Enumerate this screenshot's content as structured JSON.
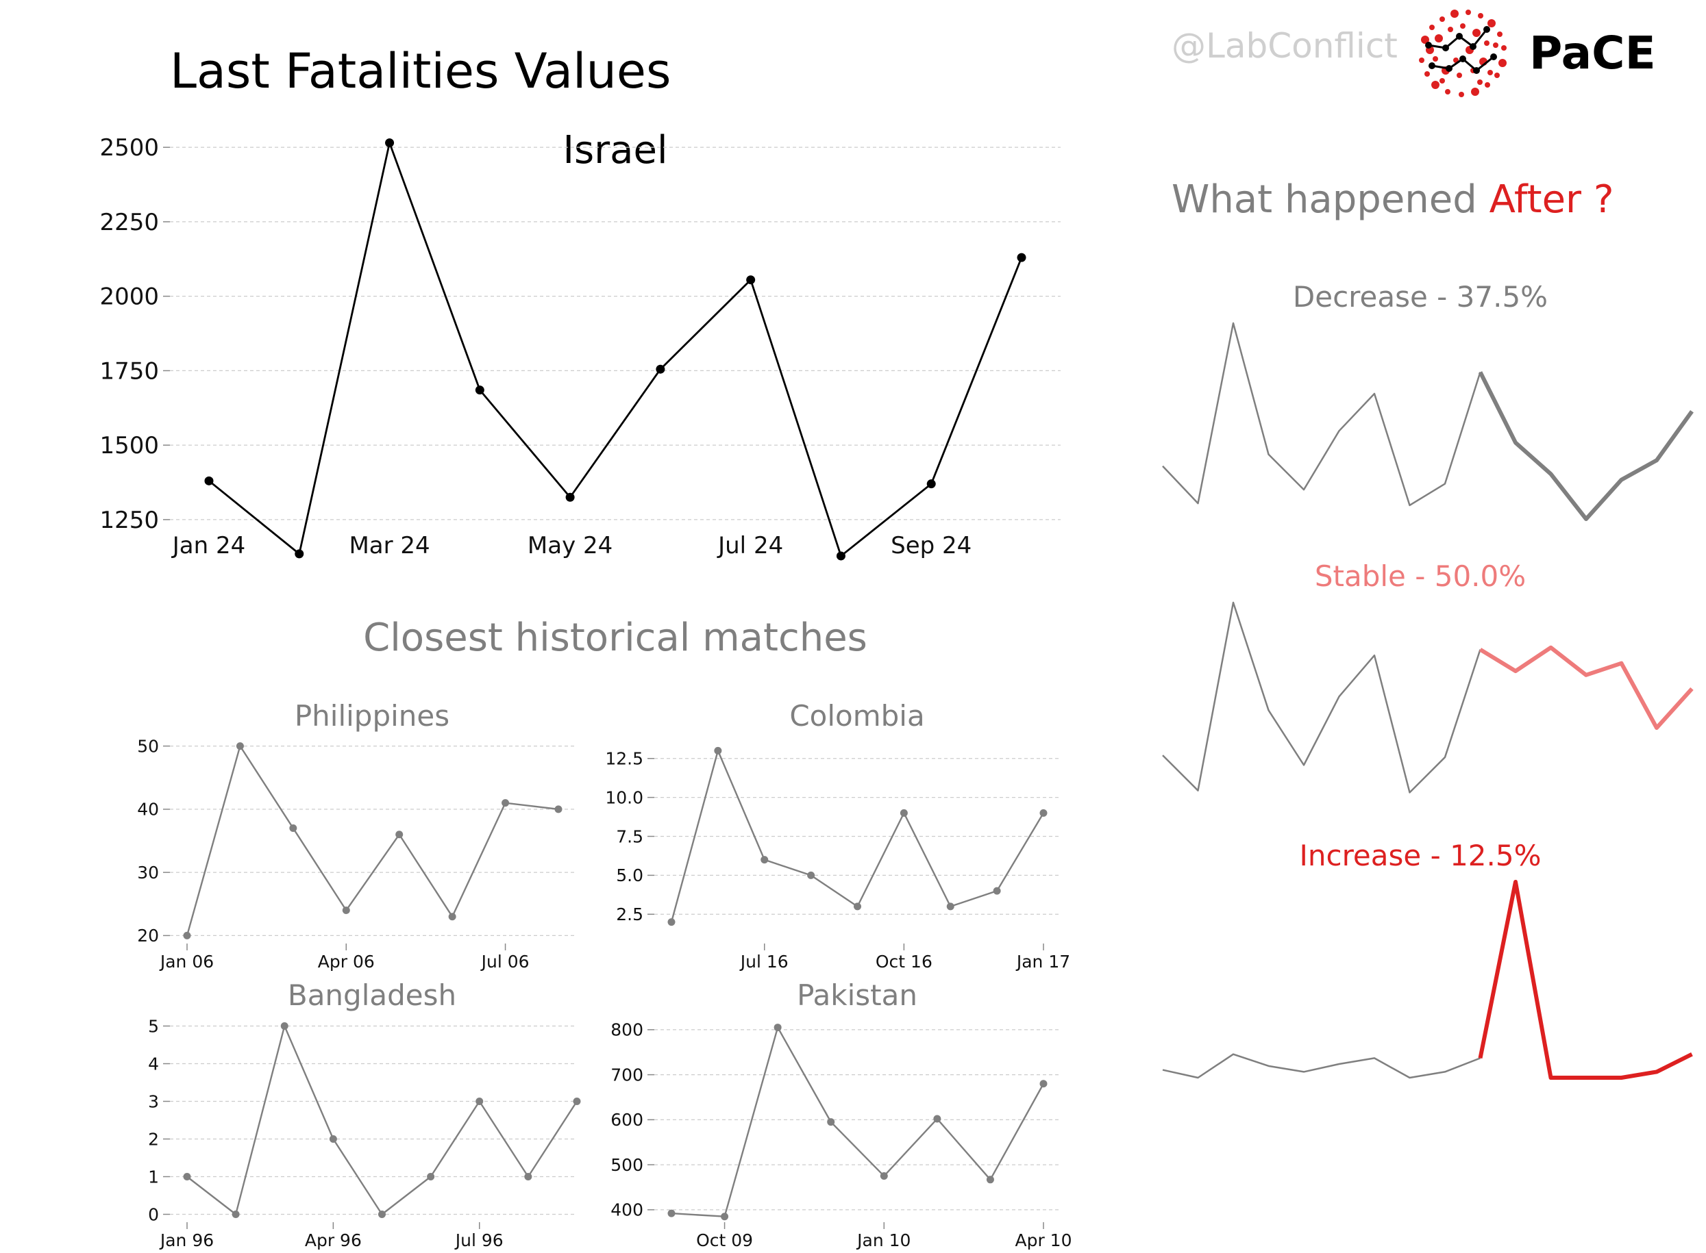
{
  "page_title": "Last Fatalities Values",
  "handle": "@LabConflict",
  "logo_text": "PaCE",
  "colors": {
    "main": "#000000",
    "grey": "#7f7f7f",
    "light_red": "#ee7b7b",
    "red": "#dd2020",
    "grid": "#cccccc"
  },
  "main_chart": {
    "title": "Israel",
    "type": "line",
    "x": [
      "2024-01",
      "2024-02",
      "2024-03",
      "2024-04",
      "2024-05",
      "2024-06",
      "2024-07",
      "2024-08",
      "2024-09",
      "2024-10"
    ],
    "values": [
      1380,
      1135,
      2515,
      1685,
      1325,
      1755,
      2055,
      1128,
      1370,
      2130
    ],
    "xticks": [
      "Jan 24",
      "Mar 24",
      "May 24",
      "Jul 24",
      "Sep 24"
    ],
    "xtick_index": [
      0,
      2,
      4,
      6,
      8
    ],
    "yticks": [
      1250,
      1500,
      1750,
      2000,
      2250,
      2500
    ],
    "ylim": [
      1075,
      2590
    ]
  },
  "matches_title": "Closest historical matches",
  "chart_data": [
    {
      "title": "Philippines",
      "type": "line",
      "x": [
        "2006-01",
        "2006-02",
        "2006-03",
        "2006-04",
        "2006-05",
        "2006-06",
        "2006-07",
        "2006-08"
      ],
      "values": [
        20,
        50,
        37,
        24,
        36,
        23,
        41,
        40
      ],
      "xticks": [
        "Jan 06",
        "Apr 06",
        "Jul 06"
      ],
      "xtick_index": [
        0,
        3,
        6
      ],
      "yticks": [
        20,
        30,
        40,
        50
      ],
      "ylim": [
        19.5,
        50.5
      ]
    },
    {
      "title": "Colombia",
      "type": "line",
      "x": [
        "2016-05",
        "2016-06",
        "2016-07",
        "2016-08",
        "2016-09",
        "2016-10",
        "2016-11",
        "2016-12",
        "2017-01"
      ],
      "values": [
        2,
        13,
        6,
        5,
        3,
        9,
        3,
        4,
        9
      ],
      "xticks": [
        "Jul 16",
        "Oct 16",
        "Jan 17"
      ],
      "xtick_index": [
        2,
        5,
        8
      ],
      "yticks": [
        2.5,
        5.0,
        7.5,
        10.0,
        12.5
      ],
      "ytick_labels": [
        "2.5",
        "5.0",
        "7.5",
        "10.0",
        "12.5"
      ],
      "ylim": [
        1.5,
        13.5
      ]
    },
    {
      "title": "Bangladesh",
      "type": "line",
      "x": [
        "1996-01",
        "1996-02",
        "1996-03",
        "1996-04",
        "1996-05",
        "1996-06",
        "1996-07",
        "1996-08",
        "1996-09"
      ],
      "values": [
        1,
        0,
        5,
        2,
        0,
        1,
        3,
        1,
        3
      ],
      "xticks": [
        "Jan 96",
        "Apr 96",
        "Jul 96"
      ],
      "xtick_index": [
        0,
        3,
        6
      ],
      "yticks": [
        0,
        1,
        2,
        3,
        4,
        5
      ],
      "ylim": [
        -0.1,
        5.1
      ]
    },
    {
      "title": "Pakistan",
      "type": "line",
      "x": [
        "2009-09",
        "2009-10",
        "2009-11",
        "2009-12",
        "2010-01",
        "2010-02",
        "2010-03",
        "2010-04"
      ],
      "values": [
        392,
        385,
        805,
        595,
        475,
        602,
        467,
        680
      ],
      "xticks": [
        "Oct 09",
        "Jan 10",
        "Apr 10"
      ],
      "xtick_index": [
        1,
        4,
        7
      ],
      "yticks": [
        400,
        500,
        600,
        700,
        800
      ],
      "ylim": [
        380,
        815
      ]
    }
  ],
  "after_title_prefix": "What happened ",
  "after_title_emphasis": "After ?",
  "outcomes": [
    {
      "label": "Decrease - 37.5%",
      "history": [
        0.27,
        0.08,
        1.0,
        0.33,
        0.15,
        0.45,
        0.64,
        0.07,
        0.18,
        0.75
      ],
      "future": [
        0.75,
        0.39,
        0.23,
        0.0,
        0.2,
        0.3,
        0.55
      ]
    },
    {
      "label": "Stable - 50.0%",
      "history": [
        0.22,
        0.04,
        1.0,
        0.45,
        0.17,
        0.52,
        0.73,
        0.03,
        0.21,
        0.76
      ],
      "future": [
        0.76,
        0.65,
        0.77,
        0.63,
        0.69,
        0.36,
        0.56
      ]
    },
    {
      "label": "Increase - 12.5%",
      "history": [
        0.04,
        0.0,
        0.12,
        0.06,
        0.03,
        0.07,
        0.1,
        0.0,
        0.03,
        0.1
      ],
      "future": [
        0.1,
        1.0,
        0.0,
        0.0,
        0.0,
        0.03,
        0.12
      ]
    }
  ]
}
